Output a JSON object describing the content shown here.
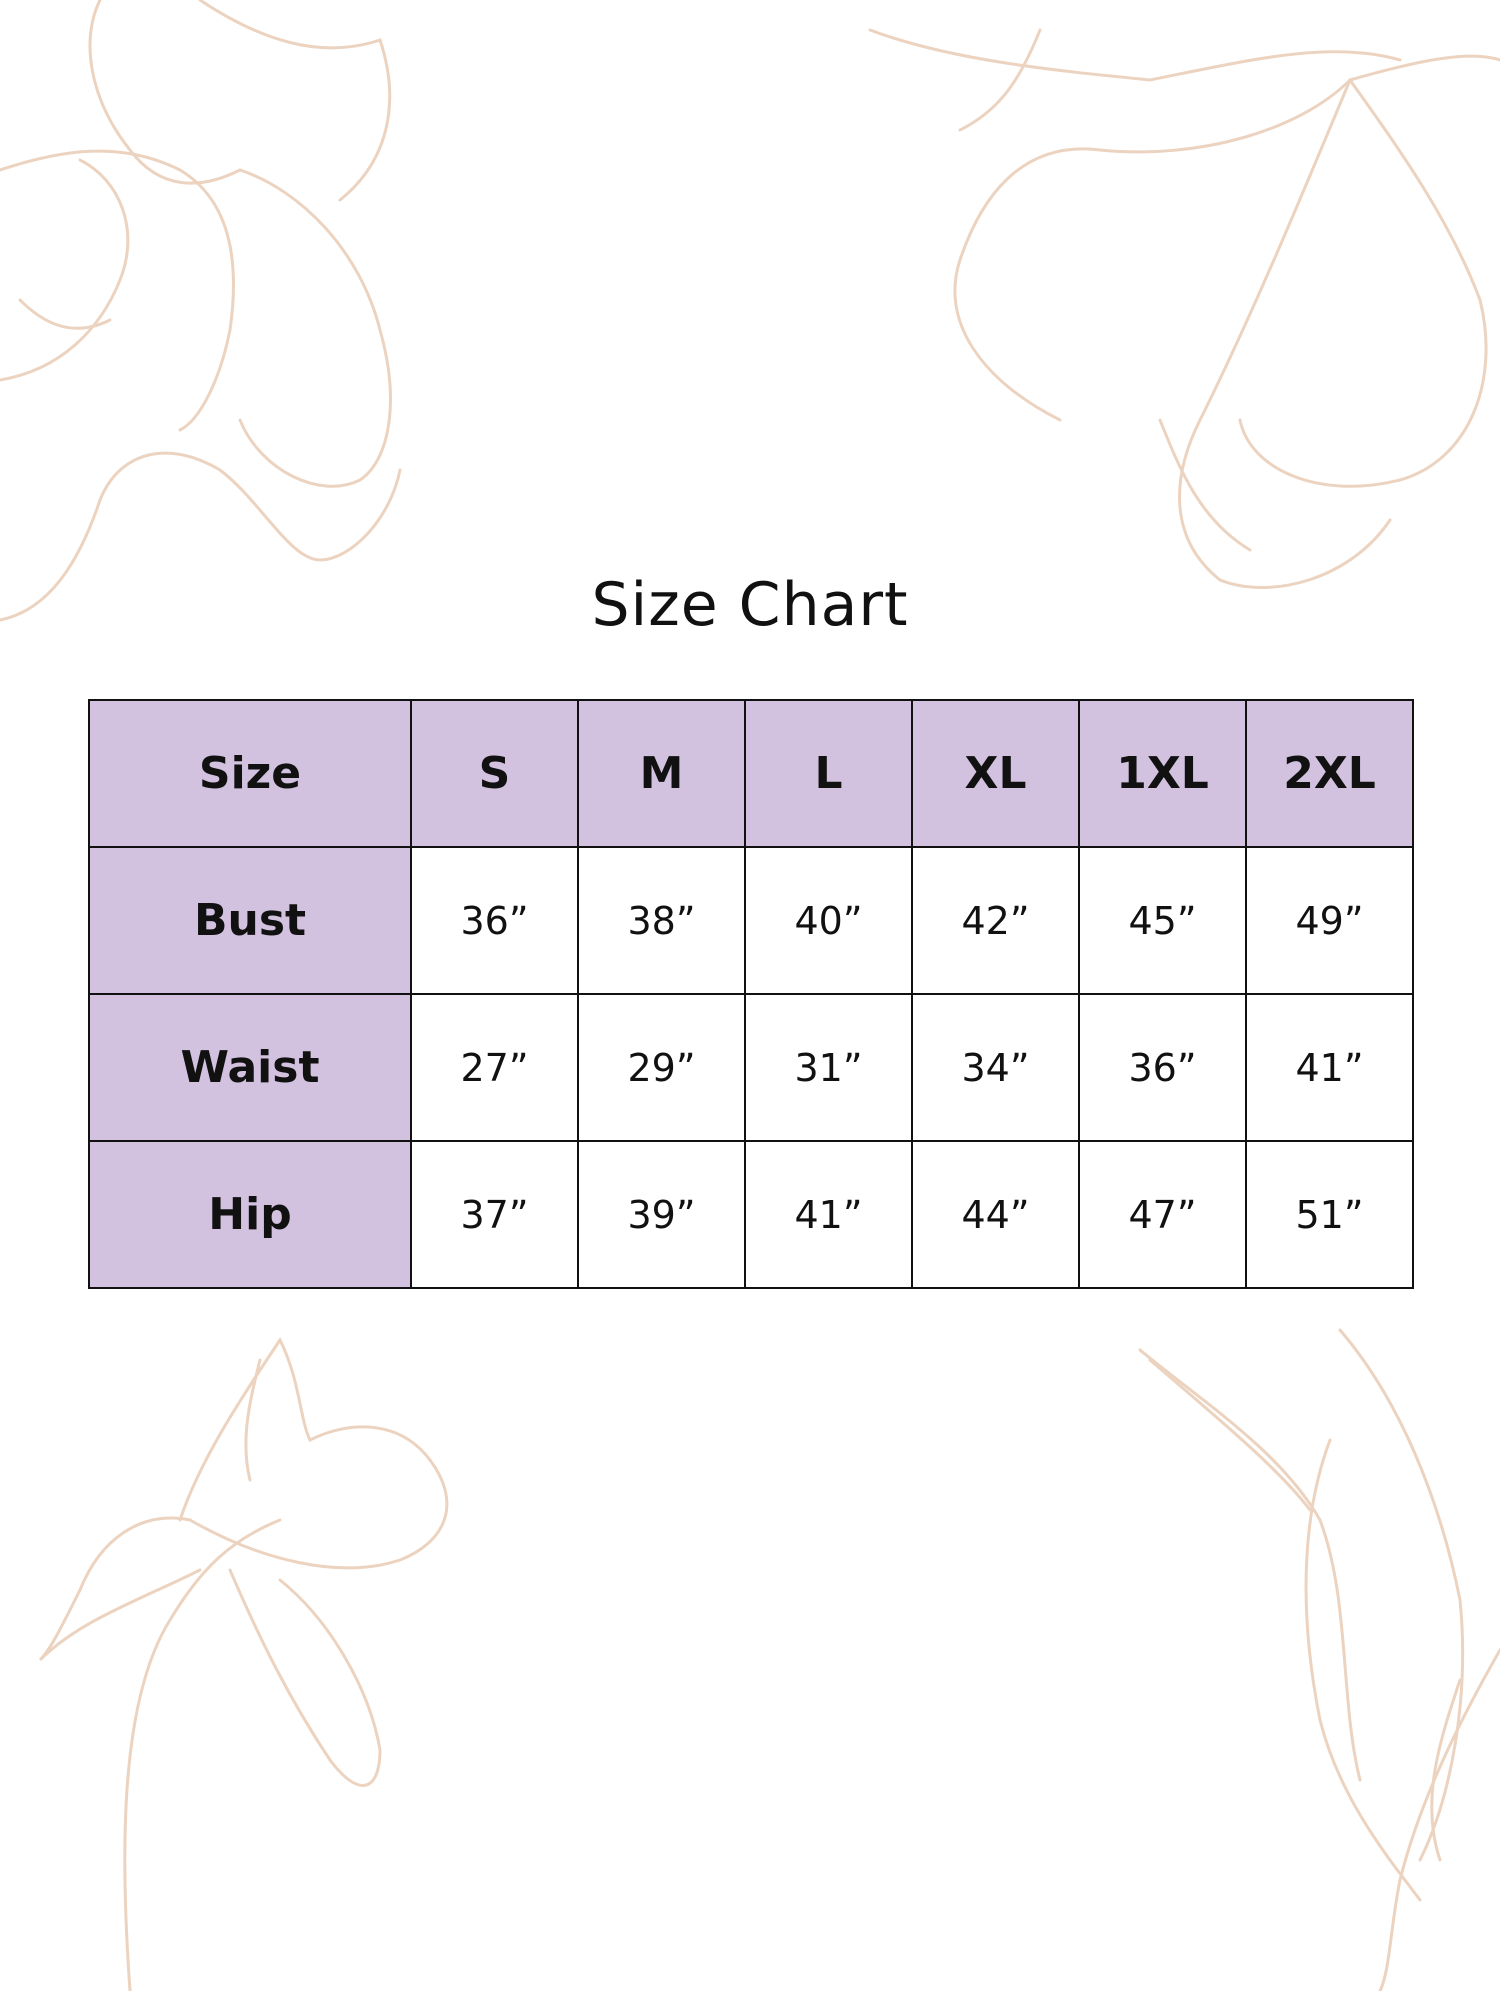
{
  "title": "Size Chart",
  "colors": {
    "header_bg": "#d2c1df",
    "border": "#111111",
    "floral_line": "#ecd3c0"
  },
  "decoration": [
    "floral-line-art-top-left",
    "floral-line-art-top-right",
    "floral-line-art-bottom-left",
    "floral-line-art-bottom-right"
  ],
  "table": {
    "header": [
      "Size",
      "S",
      "M",
      "L",
      "XL",
      "1XL",
      "2XL"
    ],
    "rows": [
      {
        "label": "Bust",
        "values": [
          "36”",
          "38”",
          "40”",
          "42”",
          "45”",
          "49”"
        ]
      },
      {
        "label": "Waist",
        "values": [
          "27”",
          "29”",
          "31”",
          "34”",
          "36”",
          "41”"
        ]
      },
      {
        "label": "Hip",
        "values": [
          "37”",
          "39”",
          "41”",
          "44”",
          "47”",
          "51”"
        ]
      }
    ]
  }
}
